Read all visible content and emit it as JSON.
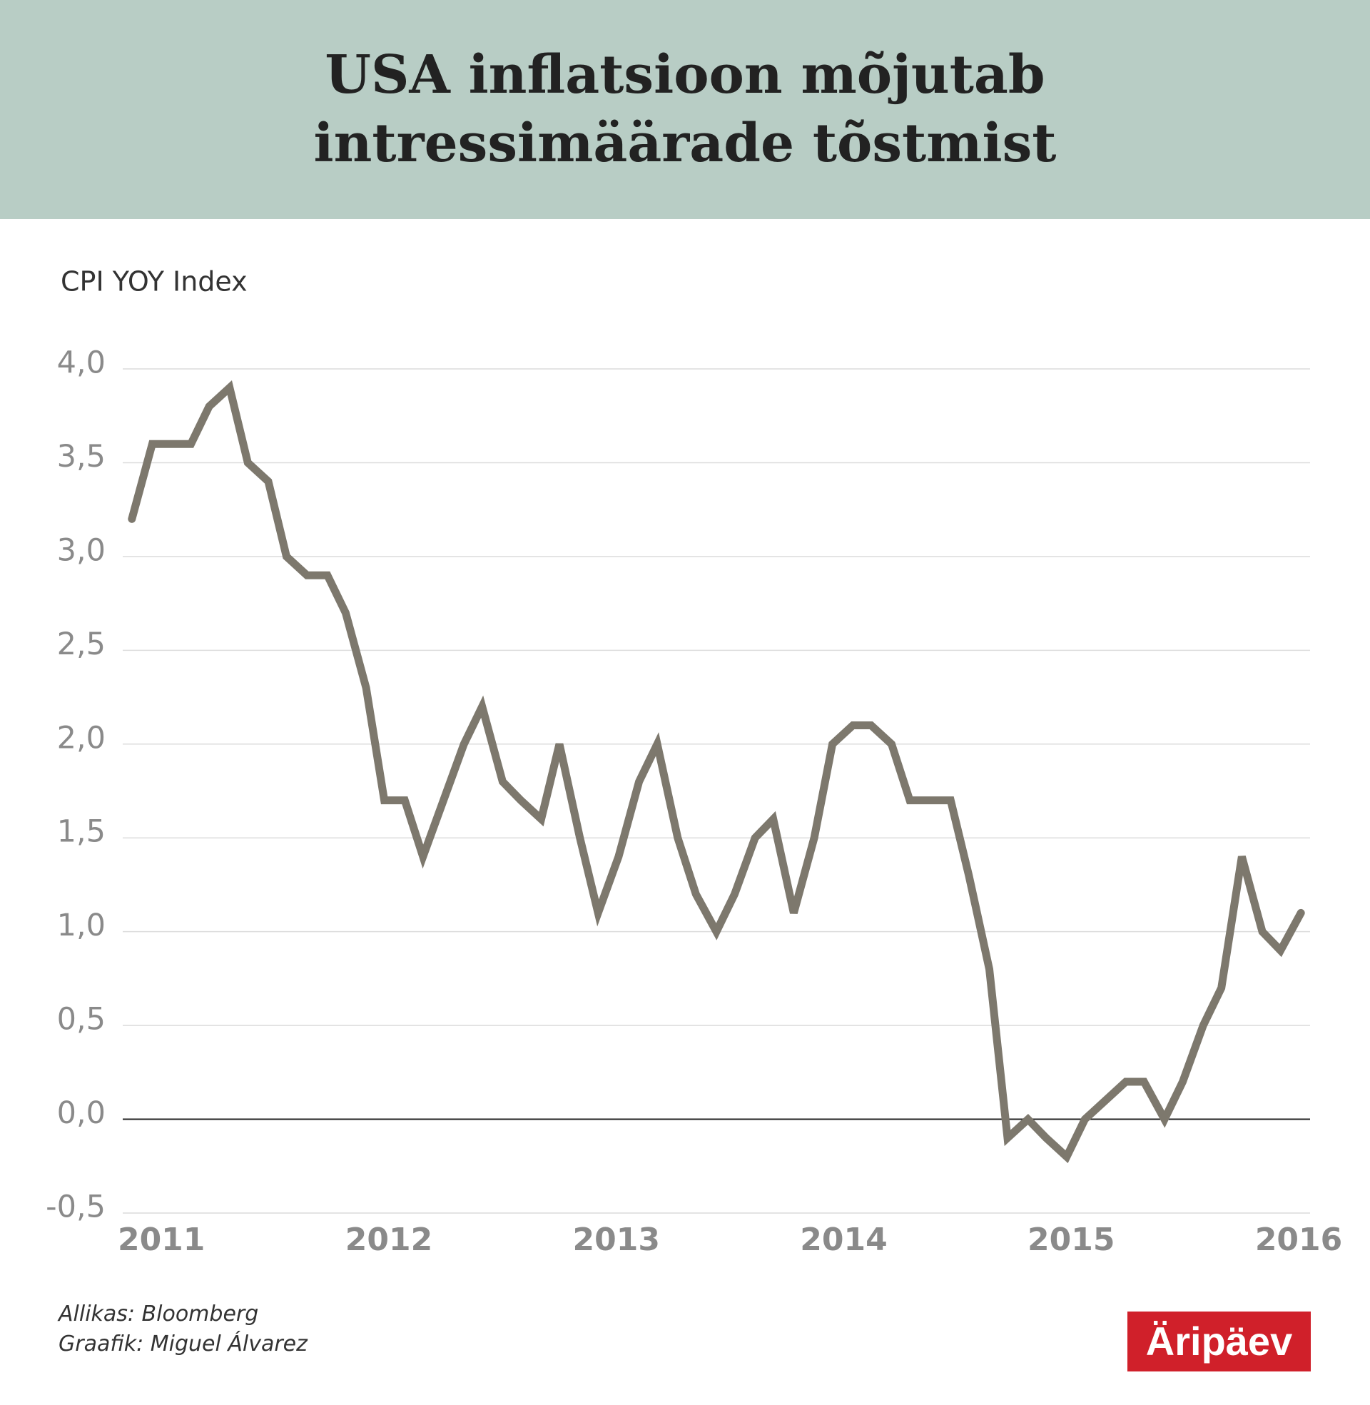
{
  "chart_data": {
    "type": "line",
    "title": [
      "USA inflatsioon mõjutab",
      "intressimäärade tõstmist"
    ],
    "y_label": "CPI YOY Index",
    "x": [
      2010.87,
      2010.96,
      2011.04,
      2011.13,
      2011.21,
      2011.3,
      2011.38,
      2011.47,
      2011.55,
      2011.64,
      2011.73,
      2011.81,
      2011.9,
      2011.98,
      2012.07,
      2012.15,
      2012.24,
      2012.33,
      2012.41,
      2012.5,
      2012.58,
      2012.67,
      2012.75,
      2012.84,
      2012.92,
      2013.01,
      2013.1,
      2013.18,
      2013.27,
      2013.35,
      2013.44,
      2013.52,
      2013.61,
      2013.69,
      2013.78,
      2013.87,
      2013.95,
      2014.04,
      2014.12,
      2014.21,
      2014.29,
      2014.38,
      2014.47,
      2014.55,
      2014.64,
      2014.72,
      2014.81,
      2014.89,
      2014.98,
      2015.06,
      2015.15,
      2015.24,
      2015.32,
      2015.41,
      2015.49,
      2015.58,
      2015.66,
      2015.75,
      2015.84,
      2015.92,
      2016.01
    ],
    "values": [
      3.2,
      3.6,
      3.6,
      3.6,
      3.8,
      3.9,
      3.5,
      3.4,
      3.0,
      2.9,
      2.9,
      2.7,
      2.3,
      1.7,
      1.7,
      1.4,
      1.7,
      2.0,
      2.2,
      1.8,
      1.7,
      1.6,
      2.0,
      1.5,
      1.1,
      1.4,
      1.8,
      2.0,
      1.5,
      1.2,
      1.0,
      1.2,
      1.5,
      1.6,
      1.1,
      1.5,
      2.0,
      2.1,
      2.1,
      2.0,
      1.7,
      1.7,
      1.7,
      1.3,
      0.8,
      -0.1,
      0.0,
      -0.1,
      -0.2,
      0.0,
      0.1,
      0.2,
      0.2,
      0.0,
      0.2,
      0.5,
      0.7,
      1.4,
      1.0,
      0.9,
      1.1
    ],
    "color": "#7d786d",
    "xlim": [
      2010.83,
      2016.05
    ],
    "xticks": [
      2011,
      2012,
      2013,
      2014,
      2015,
      2016
    ],
    "ylim": [
      -0.5,
      4.0
    ],
    "yticks": [
      {
        "value": -0.5,
        "label": "-0,5"
      },
      {
        "value": 0,
        "label": "0,0"
      },
      {
        "value": 0.5,
        "label": "0,5"
      },
      {
        "value": 1.0,
        "label": "1,0"
      },
      {
        "value": 1.5,
        "label": "1,5"
      },
      {
        "value": 2.0,
        "label": "2,0"
      },
      {
        "value": 2.5,
        "label": "2,5"
      },
      {
        "value": 3.0,
        "label": "3,0"
      },
      {
        "value": 3.5,
        "label": "3,5"
      },
      {
        "value": 4.0,
        "label": "4,0"
      }
    ],
    "grid": true,
    "source": "Allikas: Bloomberg",
    "credit": "Graafik: Miguel Álvarez",
    "logo": "Äripäev"
  }
}
